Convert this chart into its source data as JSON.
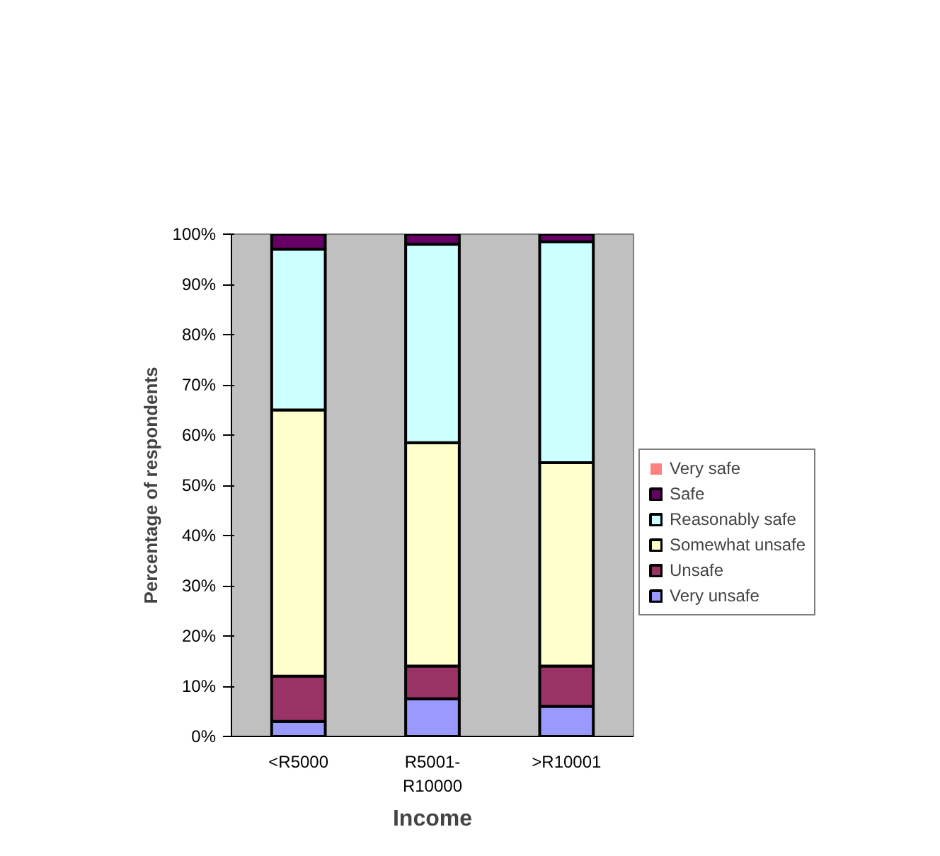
{
  "chart_data": {
    "type": "bar",
    "stacked": true,
    "xlabel": "Income",
    "ylabel": "Percentage of respondents",
    "categories": [
      "<R5000",
      "R5001- R10000",
      ">R10001"
    ],
    "series": [
      {
        "name": "Very unsafe",
        "color": "#9999ff",
        "values": [
          3,
          7.5,
          6
        ]
      },
      {
        "name": "Unsafe",
        "color": "#993366",
        "values": [
          9,
          6.5,
          8
        ]
      },
      {
        "name": "Somewhat unsafe",
        "color": "#ffffcc",
        "values": [
          53,
          44.5,
          40.5
        ]
      },
      {
        "name": "Reasonably safe",
        "color": "#ccffff",
        "values": [
          32,
          39.5,
          44
        ]
      },
      {
        "name": "Safe",
        "color": "#660066",
        "values": [
          3,
          2,
          1.5
        ]
      },
      {
        "name": "Very safe",
        "color": "#ff8080",
        "values": [
          0,
          0,
          0
        ]
      }
    ],
    "ylim": [
      0,
      100
    ],
    "yticks": [
      {
        "value": 0,
        "label": "0%"
      },
      {
        "value": 10,
        "label": "10%"
      },
      {
        "value": 20,
        "label": "20%"
      },
      {
        "value": 30,
        "label": "30%"
      },
      {
        "value": 40,
        "label": "40%"
      },
      {
        "value": 50,
        "label": "50%"
      },
      {
        "value": 60,
        "label": "60%"
      },
      {
        "value": 70,
        "label": "70%"
      },
      {
        "value": 80,
        "label": "80%"
      },
      {
        "value": 90,
        "label": "90%"
      },
      {
        "value": 100,
        "label": "100%"
      }
    ],
    "grid": false,
    "legend": "right"
  }
}
